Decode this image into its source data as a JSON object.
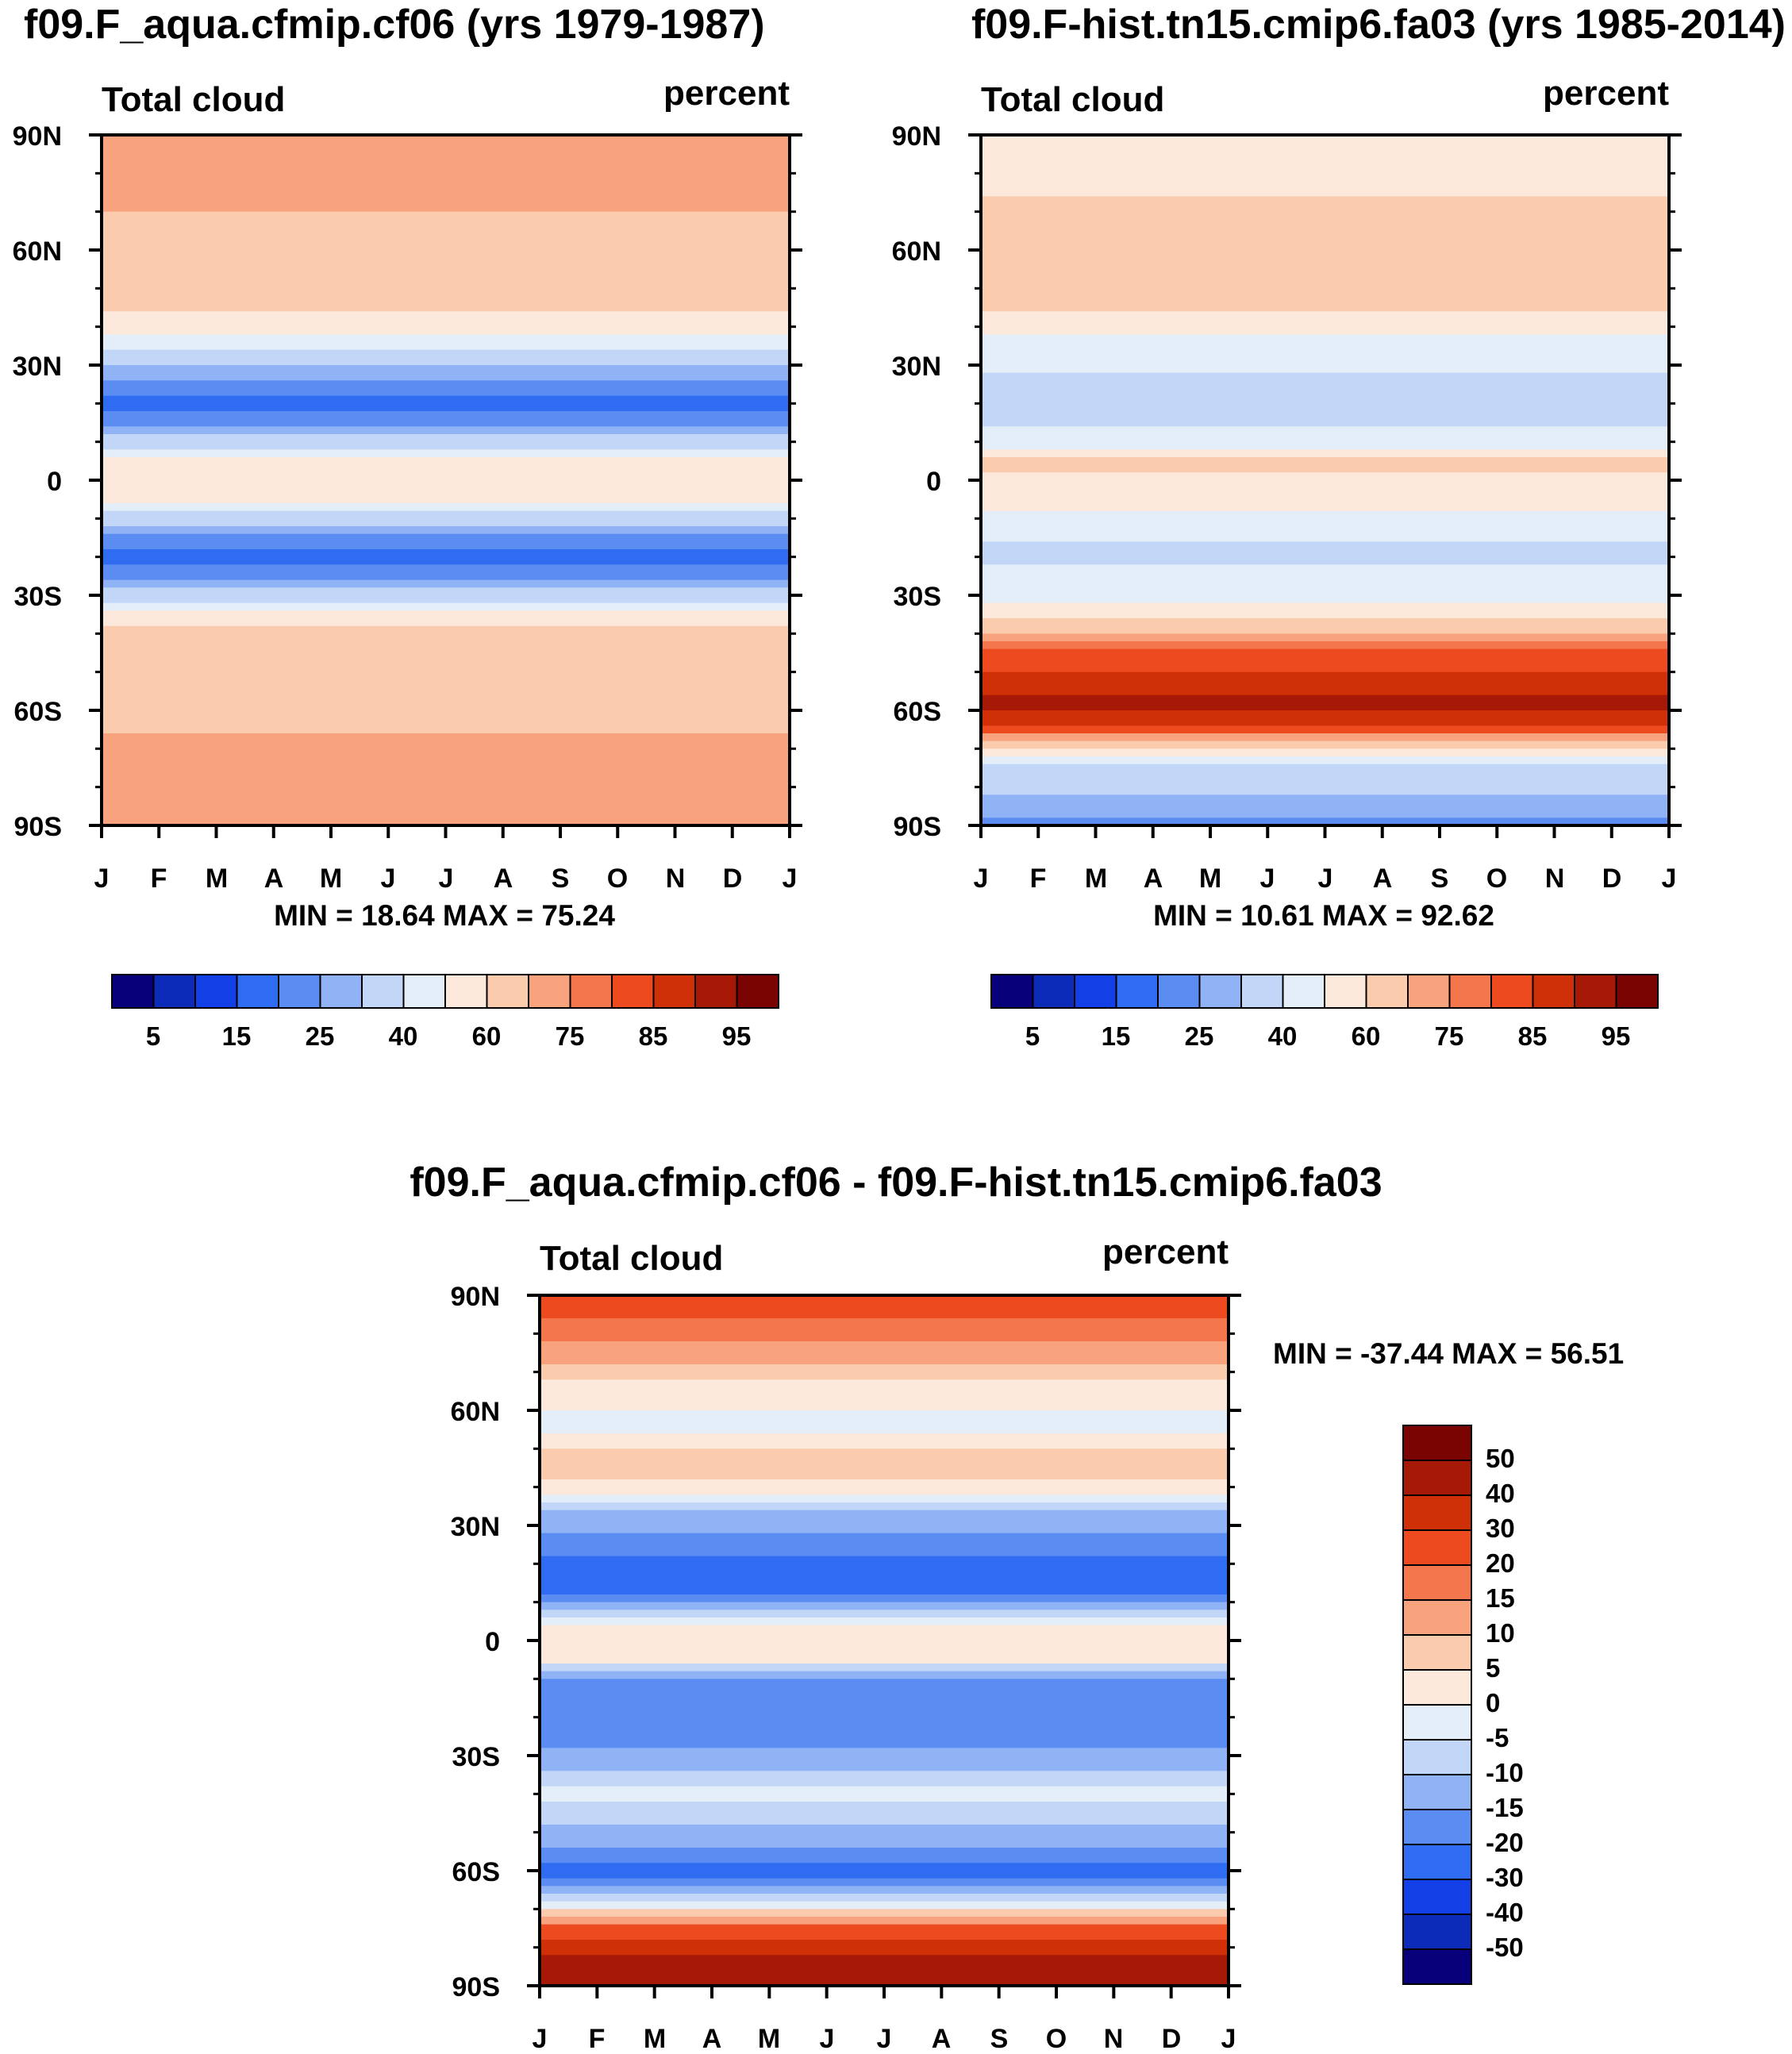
{
  "colors": {
    "abs_palette": [
      "#08007a",
      "#0b2bb8",
      "#1240e6",
      "#2f6cf2",
      "#5a8cf2",
      "#8fb3f5",
      "#c2d7f7",
      "#e4eef8",
      "#fde9dc",
      "#fbcbae",
      "#f8a37e",
      "#f4764c",
      "#ee4a1f",
      "#cf3008",
      "#a51906",
      "#7a0401"
    ],
    "diff_palette": [
      "#08007a",
      "#0b2bb8",
      "#1240e6",
      "#2f6cf2",
      "#5a8cf2",
      "#8fb3f5",
      "#c2d7f7",
      "#e4eef8",
      "#fde9dc",
      "#fbcbae",
      "#f8a37e",
      "#f4764c",
      "#ee4a1f",
      "#cf3008",
      "#a51906",
      "#7a0401"
    ]
  },
  "chart_data": [
    {
      "type": "heatmap",
      "title": "f09.F_aqua.cfmip.cf06 (yrs 1979-1987)",
      "left_label": "Total cloud",
      "right_label": "percent",
      "x_ticks": [
        "J",
        "F",
        "M",
        "A",
        "M",
        "J",
        "J",
        "A",
        "S",
        "O",
        "N",
        "D",
        "J"
      ],
      "y_ticks": [
        "90N",
        "60N",
        "30N",
        "0",
        "30S",
        "60S",
        "90S"
      ],
      "ylim": [
        -90,
        90
      ],
      "min_max_text": "MIN =  18.64 MAX =  75.24",
      "colorbar_labels": [
        "5",
        "15",
        "25",
        "40",
        "60",
        "75",
        "85",
        "95"
      ],
      "latitude_profile": [
        {
          "lat": 90,
          "value": 74
        },
        {
          "lat": 75,
          "value": 73
        },
        {
          "lat": 62,
          "value": 66
        },
        {
          "lat": 48,
          "value": 63
        },
        {
          "lat": 40,
          "value": 55
        },
        {
          "lat": 33,
          "value": 38
        },
        {
          "lat": 27,
          "value": 25
        },
        {
          "lat": 20,
          "value": 19
        },
        {
          "lat": 13,
          "value": 25
        },
        {
          "lat": 8,
          "value": 40
        },
        {
          "lat": 3,
          "value": 58
        },
        {
          "lat": -3,
          "value": 58
        },
        {
          "lat": -8,
          "value": 42
        },
        {
          "lat": -13,
          "value": 25
        },
        {
          "lat": -20,
          "value": 19
        },
        {
          "lat": -27,
          "value": 25
        },
        {
          "lat": -32,
          "value": 40
        },
        {
          "lat": -36,
          "value": 58
        },
        {
          "lat": -45,
          "value": 66
        },
        {
          "lat": -60,
          "value": 68
        },
        {
          "lat": -75,
          "value": 73
        },
        {
          "lat": -90,
          "value": 74
        }
      ]
    },
    {
      "type": "heatmap",
      "title": "f09.F-hist.tn15.cmip6.fa03 (yrs 1985-2014)",
      "left_label": "Total cloud",
      "right_label": "percent",
      "x_ticks": [
        "J",
        "F",
        "M",
        "A",
        "M",
        "J",
        "J",
        "A",
        "S",
        "O",
        "N",
        "D",
        "J"
      ],
      "y_ticks": [
        "90N",
        "60N",
        "30N",
        "0",
        "30S",
        "60S",
        "90S"
      ],
      "ylim": [
        -90,
        90
      ],
      "min_max_text": "MIN =  10.61 MAX =  92.62",
      "colorbar_labels": [
        "5",
        "15",
        "25",
        "40",
        "60",
        "75",
        "85",
        "95"
      ],
      "latitude_profile": [
        {
          "lat": 90,
          "value": 50
        },
        {
          "lat": 78,
          "value": 58
        },
        {
          "lat": 65,
          "value": 66
        },
        {
          "lat": 55,
          "value": 68
        },
        {
          "lat": 45,
          "value": 62
        },
        {
          "lat": 38,
          "value": 48
        },
        {
          "lat": 28,
          "value": 40
        },
        {
          "lat": 18,
          "value": 36
        },
        {
          "lat": 9,
          "value": 44
        },
        {
          "lat": 5,
          "value": 62
        },
        {
          "lat": 0,
          "value": 58
        },
        {
          "lat": -8,
          "value": 50
        },
        {
          "lat": -18,
          "value": 38
        },
        {
          "lat": -28,
          "value": 42
        },
        {
          "lat": -36,
          "value": 60
        },
        {
          "lat": -43,
          "value": 78
        },
        {
          "lat": -50,
          "value": 86
        },
        {
          "lat": -58,
          "value": 92
        },
        {
          "lat": -64,
          "value": 86
        },
        {
          "lat": -69,
          "value": 60
        },
        {
          "lat": -74,
          "value": 38
        },
        {
          "lat": -82,
          "value": 30
        },
        {
          "lat": -90,
          "value": 22
        }
      ]
    },
    {
      "type": "heatmap",
      "title": "f09.F_aqua.cfmip.cf06 - f09.F-hist.tn15.cmip6.fa03",
      "left_label": "Total cloud",
      "right_label": "percent",
      "x_ticks": [
        "J",
        "F",
        "M",
        "A",
        "M",
        "J",
        "J",
        "A",
        "S",
        "O",
        "N",
        "D",
        "J"
      ],
      "y_ticks": [
        "90N",
        "60N",
        "30N",
        "0",
        "30S",
        "60S",
        "90S"
      ],
      "ylim": [
        -90,
        90
      ],
      "min_max_text": "MIN = -37.44 MAX =  56.51",
      "colorbar_labels": [
        "50",
        "40",
        "30",
        "20",
        "15",
        "10",
        "5",
        "0",
        "-5",
        "-10",
        "-15",
        "-20",
        "-30",
        "-40",
        "-50"
      ],
      "latitude_profile": [
        {
          "lat": 90,
          "value": 24
        },
        {
          "lat": 78,
          "value": 15
        },
        {
          "lat": 65,
          "value": 2
        },
        {
          "lat": 55,
          "value": -2
        },
        {
          "lat": 47,
          "value": 8
        },
        {
          "lat": 40,
          "value": 3
        },
        {
          "lat": 33,
          "value": -12
        },
        {
          "lat": 25,
          "value": -18
        },
        {
          "lat": 15,
          "value": -25
        },
        {
          "lat": 8,
          "value": -8
        },
        {
          "lat": 2,
          "value": 3
        },
        {
          "lat": -5,
          "value": 2
        },
        {
          "lat": -10,
          "value": -16
        },
        {
          "lat": -20,
          "value": -20
        },
        {
          "lat": -30,
          "value": -14
        },
        {
          "lat": -40,
          "value": -4
        },
        {
          "lat": -50,
          "value": -12
        },
        {
          "lat": -60,
          "value": -22
        },
        {
          "lat": -67,
          "value": -10
        },
        {
          "lat": -72,
          "value": 10
        },
        {
          "lat": -80,
          "value": 38
        },
        {
          "lat": -90,
          "value": 48
        }
      ]
    }
  ]
}
